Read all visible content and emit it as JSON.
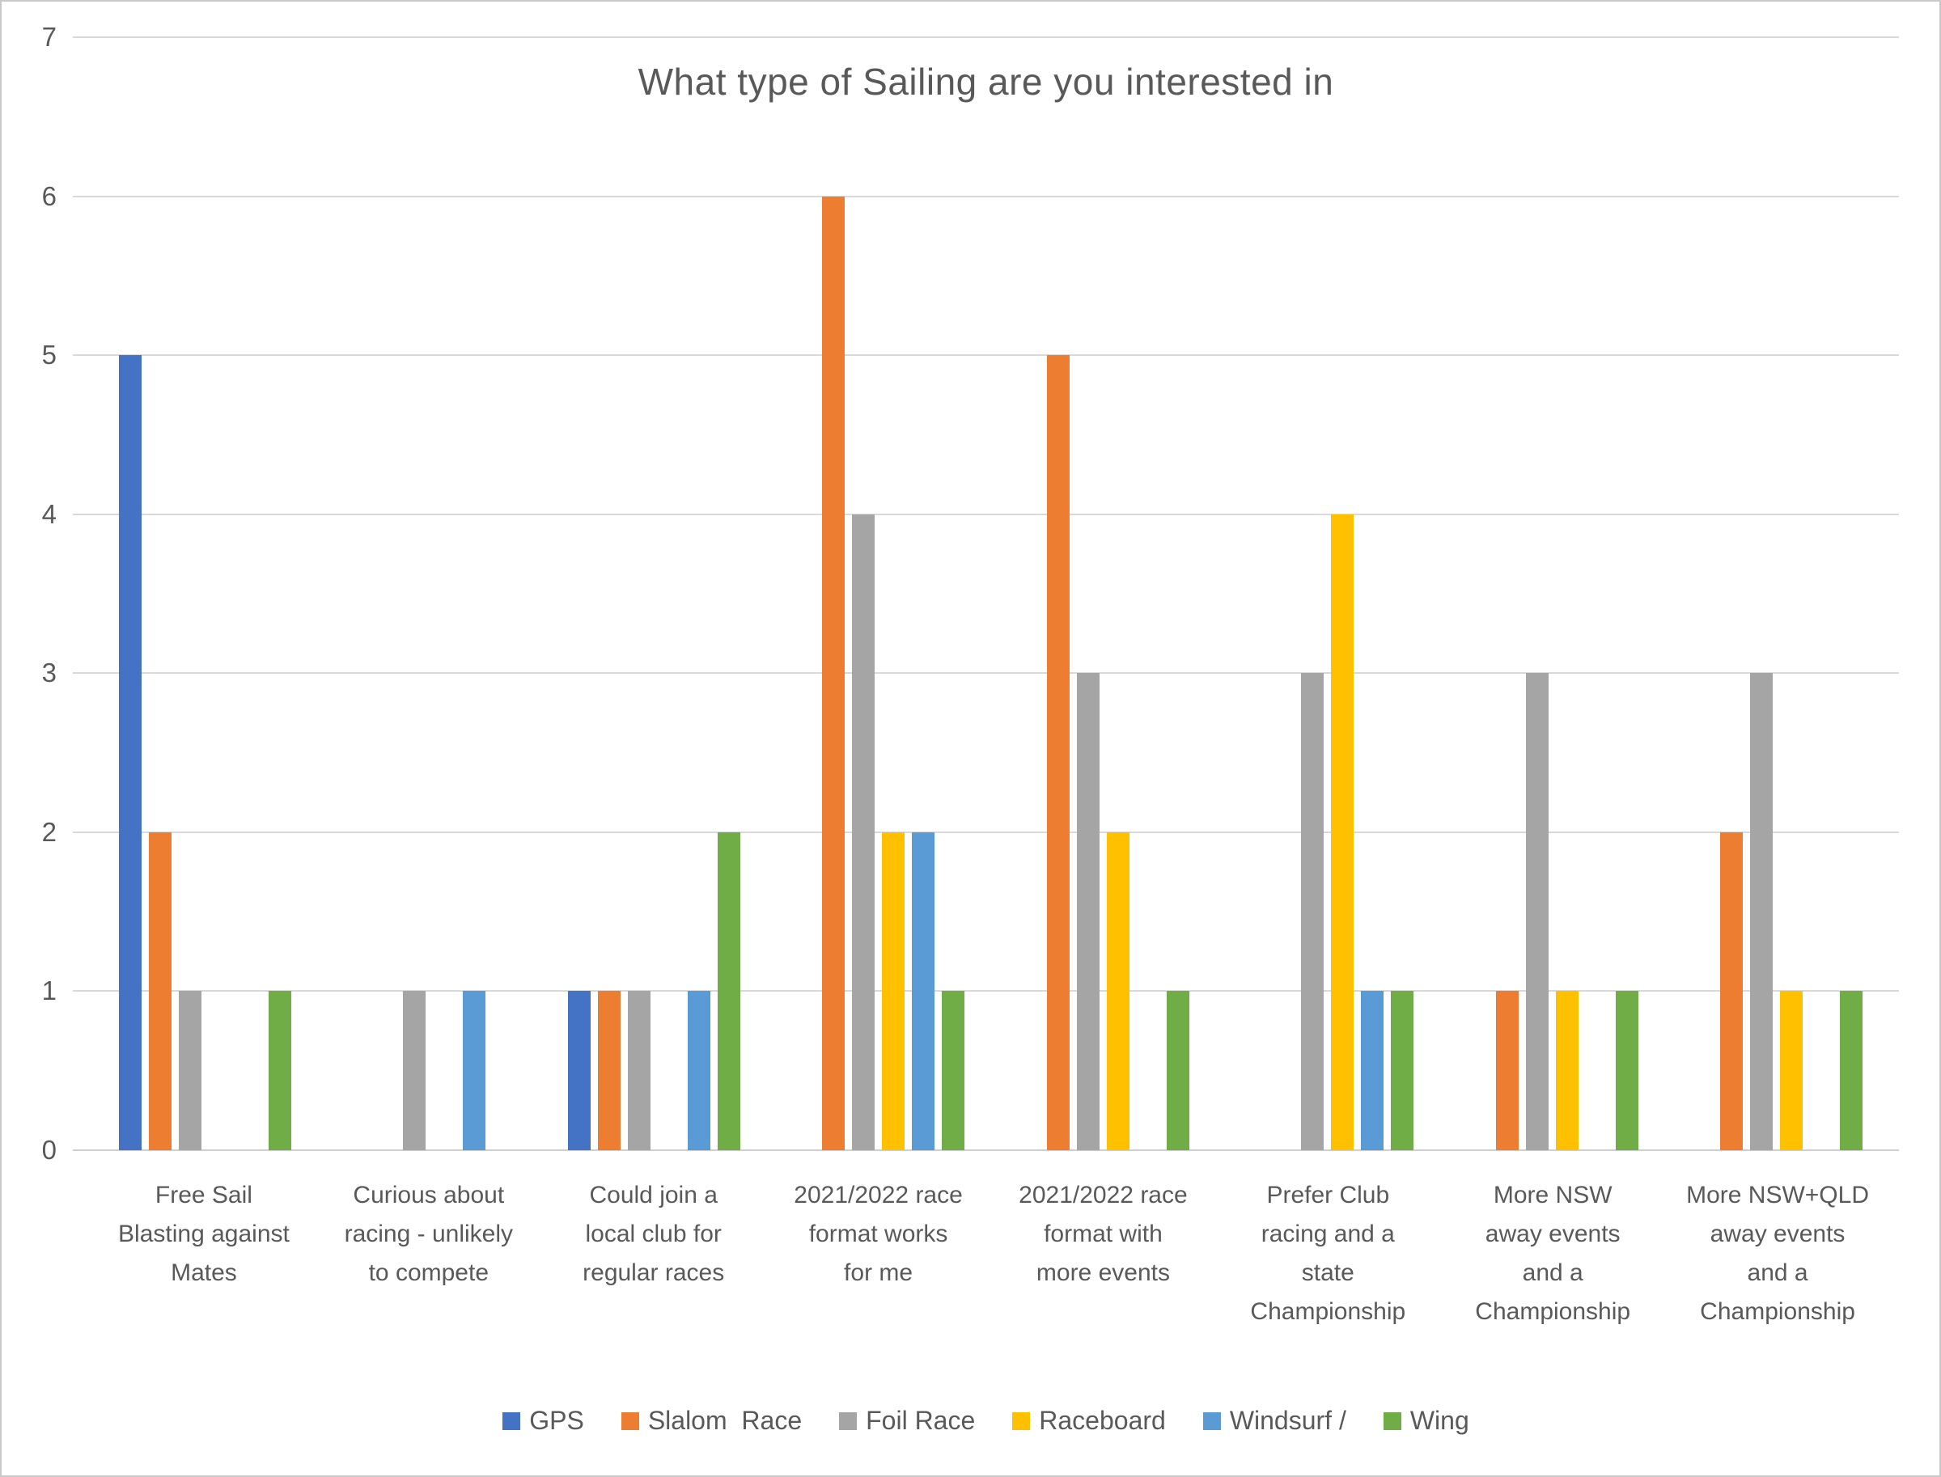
{
  "chart_data": {
    "type": "bar",
    "title": "What type of Sailing are you interested in",
    "categories": [
      "Free Sail Blasting against Mates",
      "Curious about racing - unlikely to compete",
      "Could join a local club for regular races",
      "2021/2022 race format works for me",
      "2021/2022 race format with more events",
      "Prefer Club racing and a state Championship",
      "More NSW away events and a Championship",
      "More NSW+QLD away events and a Championship"
    ],
    "category_lines": [
      "Free Sail\nBlasting against\nMates",
      "Curious about\nracing - unlikely\nto compete",
      "Could join a\nlocal club for\nregular races",
      "2021/2022 race\nformat works\nfor me",
      "2021/2022 race\nformat with\nmore events",
      "Prefer Club\nracing and a\nstate\nChampionship",
      "More NSW\naway events\nand a\nChampionship",
      "More NSW+QLD\naway events\nand a\nChampionship"
    ],
    "series": [
      {
        "name": "GPS",
        "color": "#4472C4",
        "values": [
          5,
          0,
          1,
          0,
          0,
          0,
          0,
          0
        ]
      },
      {
        "name": "Slalom  Race",
        "color": "#ED7D31",
        "values": [
          2,
          0,
          1,
          6,
          5,
          0,
          1,
          2
        ]
      },
      {
        "name": "Foil Race",
        "color": "#A5A5A5",
        "values": [
          1,
          1,
          1,
          4,
          3,
          3,
          3,
          3
        ]
      },
      {
        "name": "Raceboard",
        "color": "#FFC000",
        "values": [
          0,
          0,
          0,
          2,
          2,
          4,
          1,
          1
        ]
      },
      {
        "name": "Windsurf /",
        "color": "#5B9BD5",
        "values": [
          0,
          1,
          1,
          2,
          0,
          1,
          0,
          0
        ]
      },
      {
        "name": "Wing",
        "color": "#70AD47",
        "values": [
          1,
          0,
          2,
          1,
          1,
          1,
          1,
          1
        ]
      }
    ],
    "xlabel": "",
    "ylabel": "",
    "ylim": [
      0,
      7
    ],
    "yticks": [
      "0",
      "1",
      "2",
      "3",
      "4",
      "5",
      "6",
      "7"
    ],
    "grid": true,
    "legend_position": "bottom",
    "gridline_color": "#D9D9D9",
    "text_color": "#595959",
    "background_color": "#FFFFFF"
  }
}
